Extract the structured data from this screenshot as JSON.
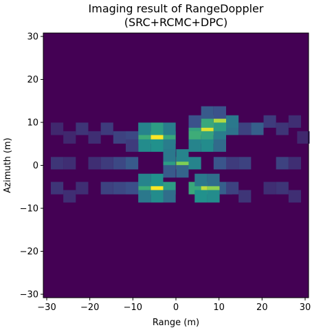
{
  "chart_data": {
    "type": "heatmap",
    "title_lines": [
      "Imaging result of RangeDoppler",
      "(SRC+RCMC+DPC)"
    ],
    "xlabel": "Range (m)",
    "ylabel": "Azimuth (m)",
    "xlim": [
      -30.8,
      30.8
    ],
    "ylim": [
      -30.8,
      30.8
    ],
    "xticks": [
      -30,
      -20,
      -10,
      0,
      10,
      20,
      30
    ],
    "yticks": [
      -30,
      -20,
      -10,
      0,
      10,
      20,
      30
    ],
    "xtick_labels": [
      "−30",
      "−20",
      "−10",
      "0",
      "10",
      "20",
      "30"
    ],
    "ytick_labels": [
      "−30",
      "−20",
      "−10",
      "0",
      "10",
      "20",
      "30"
    ],
    "colormap": "viridis",
    "background_value": 0,
    "cell_size": 2.9,
    "grid": false,
    "cells": [
      {
        "x": -4.4,
        "y": 6.5,
        "v": 1.0
      },
      {
        "x": -7.3,
        "y": 6.5,
        "v": 0.62
      },
      {
        "x": -1.5,
        "y": 6.5,
        "v": 0.6
      },
      {
        "x": -4.4,
        "y": 8.5,
        "v": 0.55
      },
      {
        "x": -7.3,
        "y": 8.5,
        "v": 0.45
      },
      {
        "x": -1.5,
        "y": 8.5,
        "v": 0.42
      },
      {
        "x": -4.4,
        "y": 4.6,
        "v": 0.5
      },
      {
        "x": -7.3,
        "y": 4.6,
        "v": 0.48
      },
      {
        "x": -1.5,
        "y": 4.6,
        "v": 0.42
      },
      {
        "x": -10.2,
        "y": 6.5,
        "v": 0.22
      },
      {
        "x": -10.2,
        "y": 4.6,
        "v": 0.18
      },
      {
        "x": 7.3,
        "y": 8.5,
        "v": 0.95
      },
      {
        "x": 10.2,
        "y": 10.2,
        "v": 0.88
      },
      {
        "x": 4.4,
        "y": 8.5,
        "v": 0.58
      },
      {
        "x": 7.3,
        "y": 10.2,
        "v": 0.6
      },
      {
        "x": 10.2,
        "y": 8.5,
        "v": 0.55
      },
      {
        "x": 13.1,
        "y": 8.5,
        "v": 0.38
      },
      {
        "x": 13.1,
        "y": 10.2,
        "v": 0.4
      },
      {
        "x": 4.4,
        "y": 6.5,
        "v": 0.62
      },
      {
        "x": 7.3,
        "y": 6.5,
        "v": 0.58
      },
      {
        "x": 10.2,
        "y": 6.5,
        "v": 0.42
      },
      {
        "x": 4.4,
        "y": 4.6,
        "v": 0.45
      },
      {
        "x": 7.3,
        "y": 4.6,
        "v": 0.48
      },
      {
        "x": 10.2,
        "y": 4.6,
        "v": 0.35
      },
      {
        "x": 7.3,
        "y": 12.3,
        "v": 0.28
      },
      {
        "x": 10.2,
        "y": 12.3,
        "v": 0.25
      },
      {
        "x": 4.4,
        "y": 10.2,
        "v": 0.25
      },
      {
        "x": 1.5,
        "y": 0.5,
        "v": 0.8
      },
      {
        "x": -1.5,
        "y": 0.5,
        "v": 0.55
      },
      {
        "x": 4.4,
        "y": 0.5,
        "v": 0.45
      },
      {
        "x": -1.5,
        "y": 2.3,
        "v": 0.4
      },
      {
        "x": 1.5,
        "y": 2.3,
        "v": 0.45
      },
      {
        "x": 1.5,
        "y": -1.4,
        "v": 0.32
      },
      {
        "x": -1.5,
        "y": -1.4,
        "v": 0.28
      },
      {
        "x": -4.4,
        "y": -5.3,
        "v": 1.0
      },
      {
        "x": -7.3,
        "y": -5.3,
        "v": 0.62
      },
      {
        "x": -1.5,
        "y": -5.3,
        "v": 0.55
      },
      {
        "x": -4.4,
        "y": -3.4,
        "v": 0.5
      },
      {
        "x": -7.3,
        "y": -3.4,
        "v": 0.45
      },
      {
        "x": -4.4,
        "y": -7.2,
        "v": 0.48
      },
      {
        "x": -7.3,
        "y": -7.2,
        "v": 0.4
      },
      {
        "x": -1.5,
        "y": -7.2,
        "v": 0.36
      },
      {
        "x": 5.8,
        "y": -5.3,
        "v": 0.9
      },
      {
        "x": 8.7,
        "y": -5.3,
        "v": 0.82
      },
      {
        "x": 4.4,
        "y": -5.3,
        "v": 0.6
      },
      {
        "x": 5.8,
        "y": -7.2,
        "v": 0.5
      },
      {
        "x": 8.7,
        "y": -7.2,
        "v": 0.48
      },
      {
        "x": 5.8,
        "y": -3.4,
        "v": 0.4
      },
      {
        "x": 8.7,
        "y": -3.4,
        "v": 0.36
      },
      {
        "x": 11.6,
        "y": -5.3,
        "v": 0.3
      },
      {
        "x": -13.1,
        "y": 6.5,
        "v": 0.2
      },
      {
        "x": -16.0,
        "y": 8.5,
        "v": 0.18
      },
      {
        "x": -18.9,
        "y": 6.5,
        "v": 0.14
      },
      {
        "x": -21.8,
        "y": 8.5,
        "v": 0.16
      },
      {
        "x": -24.7,
        "y": 6.5,
        "v": 0.12
      },
      {
        "x": -27.6,
        "y": 8.5,
        "v": 0.12
      },
      {
        "x": 16.0,
        "y": 8.5,
        "v": 0.2
      },
      {
        "x": 18.9,
        "y": 8.5,
        "v": 0.3
      },
      {
        "x": 21.8,
        "y": 10.2,
        "v": 0.18
      },
      {
        "x": 24.7,
        "y": 8.5,
        "v": 0.16
      },
      {
        "x": 27.6,
        "y": 10.2,
        "v": 0.14
      },
      {
        "x": 29.6,
        "y": 6.5,
        "v": 0.12
      },
      {
        "x": -13.1,
        "y": 0.5,
        "v": 0.22
      },
      {
        "x": -16.0,
        "y": 0.5,
        "v": 0.18
      },
      {
        "x": -18.9,
        "y": 0.5,
        "v": 0.14
      },
      {
        "x": -24.7,
        "y": 0.5,
        "v": 0.14
      },
      {
        "x": -27.6,
        "y": 0.5,
        "v": 0.16
      },
      {
        "x": 13.1,
        "y": 0.5,
        "v": 0.18
      },
      {
        "x": 16.0,
        "y": 0.5,
        "v": 0.2
      },
      {
        "x": 24.7,
        "y": 0.5,
        "v": 0.2
      },
      {
        "x": 27.6,
        "y": 0.5,
        "v": 0.14
      },
      {
        "x": -13.1,
        "y": -5.3,
        "v": 0.22
      },
      {
        "x": -16.0,
        "y": -5.3,
        "v": 0.2
      },
      {
        "x": -21.8,
        "y": -5.3,
        "v": 0.14
      },
      {
        "x": -24.7,
        "y": -7.2,
        "v": 0.14
      },
      {
        "x": -27.6,
        "y": -5.3,
        "v": 0.16
      },
      {
        "x": 13.1,
        "y": -5.3,
        "v": 0.2
      },
      {
        "x": 16.0,
        "y": -7.2,
        "v": 0.16
      },
      {
        "x": 21.8,
        "y": -5.3,
        "v": 0.14
      },
      {
        "x": 24.7,
        "y": -5.3,
        "v": 0.16
      },
      {
        "x": 27.6,
        "y": -7.2,
        "v": 0.14
      },
      {
        "x": -10.2,
        "y": -5.3,
        "v": 0.24
      },
      {
        "x": -10.2,
        "y": 0.5,
        "v": 0.28
      },
      {
        "x": 10.2,
        "y": 0.5,
        "v": 0.26
      }
    ]
  }
}
